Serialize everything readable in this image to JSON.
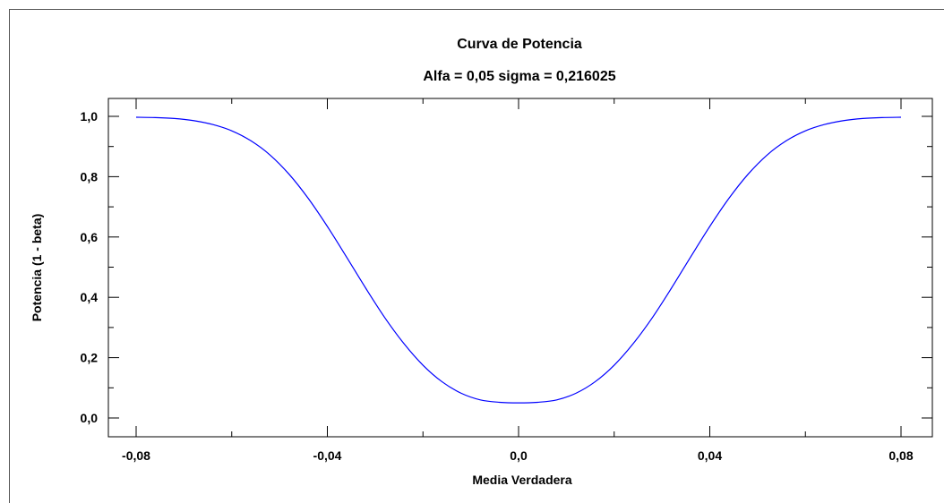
{
  "chart_data": {
    "type": "line",
    "title": "Curva de Potencia",
    "subtitle": "Alfa = 0,05  sigma = 0,216025",
    "xlabel": "Media Verdadera",
    "ylabel": "Potencia (1 - beta)",
    "xlim": [
      -0.08,
      0.08
    ],
    "ylim": [
      0.0,
      1.0
    ],
    "x_ticks": [
      -0.08,
      -0.04,
      0.0,
      0.04,
      0.08
    ],
    "x_tick_labels": [
      "-0,08",
      "-0,04",
      "0,0",
      "0,04",
      "0,08"
    ],
    "y_ticks": [
      0.0,
      0.2,
      0.4,
      0.6,
      0.8,
      1.0
    ],
    "y_tick_labels": [
      "0,0",
      "0,2",
      "0,4",
      "0,6",
      "0,8",
      "1,0"
    ],
    "grid": false,
    "series": [
      {
        "color": "#0000ff",
        "x": [
          -0.08,
          -0.076,
          -0.072,
          -0.068,
          -0.064,
          -0.06,
          -0.056,
          -0.052,
          -0.048,
          -0.044,
          -0.04,
          -0.036,
          -0.032,
          -0.028,
          -0.024,
          -0.02,
          -0.016,
          -0.012,
          -0.008,
          -0.004,
          0.0,
          0.004,
          0.008,
          0.012,
          0.016,
          0.02,
          0.024,
          0.028,
          0.032,
          0.036,
          0.04,
          0.044,
          0.048,
          0.052,
          0.056,
          0.06,
          0.064,
          0.068,
          0.072,
          0.076,
          0.08
        ],
        "y": [
          0.997,
          0.996,
          0.993,
          0.986,
          0.973,
          0.952,
          0.919,
          0.872,
          0.808,
          0.728,
          0.635,
          0.534,
          0.431,
          0.333,
          0.247,
          0.175,
          0.12,
          0.082,
          0.06,
          0.052,
          0.05,
          0.052,
          0.06,
          0.082,
          0.12,
          0.175,
          0.247,
          0.333,
          0.431,
          0.534,
          0.635,
          0.728,
          0.808,
          0.872,
          0.919,
          0.952,
          0.973,
          0.986,
          0.993,
          0.996,
          0.997
        ]
      }
    ]
  }
}
